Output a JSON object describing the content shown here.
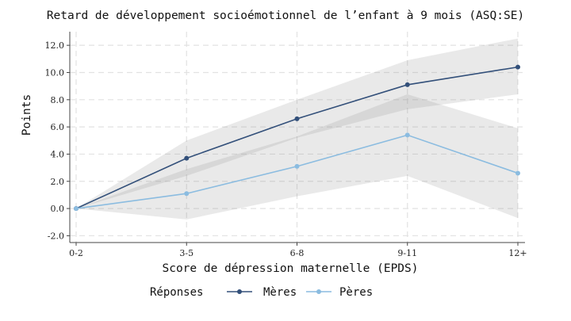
{
  "chart_data": {
    "type": "line",
    "title": "Retard de développement socioémotionnel de l’enfant à 9 mois (ASQ:SE)",
    "xlabel": "Score de dépression maternelle (EPDS)",
    "ylabel": "Points",
    "categories": [
      "0-2",
      "3-5",
      "6-8",
      "9-11",
      "12+"
    ],
    "ylim": [
      -2.5,
      13
    ],
    "yticks": [
      "-2.0",
      "0.0",
      "2.0",
      "4.0",
      "6.0",
      "8.0",
      "10.0",
      "12.0"
    ],
    "grid": true,
    "legend": {
      "title": "Réponses",
      "placement": "bottom"
    },
    "series": [
      {
        "name": "Mères",
        "color": "#33507a",
        "values": [
          0.0,
          3.7,
          6.6,
          9.1,
          10.4
        ],
        "ci_low": [
          0.0,
          2.4,
          5.2,
          7.3,
          8.4
        ],
        "ci_high": [
          0.0,
          5.0,
          8.0,
          10.9,
          12.5
        ]
      },
      {
        "name": "Pères",
        "color": "#8bbce0",
        "values": [
          0.0,
          1.1,
          3.1,
          5.4,
          2.6
        ],
        "ci_low": [
          0.0,
          -0.8,
          0.9,
          2.4,
          -0.7
        ],
        "ci_high": [
          0.0,
          2.9,
          5.3,
          8.4,
          5.9
        ]
      }
    ]
  }
}
